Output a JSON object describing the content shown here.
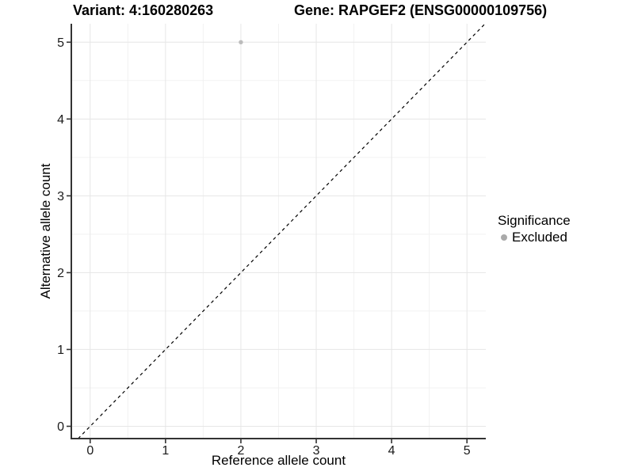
{
  "chart_data": {
    "type": "scatter",
    "titles": {
      "variant": "Variant: 4:160280263",
      "gene": "Gene: RAPGEF2 (ENSG00000109756)"
    },
    "xlabel": "Reference allele count",
    "ylabel": "Alternative allele count",
    "xlim": [
      -0.25,
      5.25
    ],
    "ylim": [
      -0.16,
      5.24
    ],
    "xticks": [
      0,
      1,
      2,
      3,
      4,
      5
    ],
    "yticks": [
      0,
      1,
      2,
      3,
      4,
      5
    ],
    "grid": "major+minor",
    "points": [
      {
        "x": 2,
        "y": 5,
        "significance": "Excluded"
      }
    ],
    "reference_line": {
      "type": "identity",
      "style": "dashed"
    },
    "legend": {
      "title": "Significance",
      "position": "right",
      "items": [
        {
          "label": "Excluded",
          "color": "#b0b0b0"
        }
      ]
    }
  },
  "colors": {
    "point": "#bcbcbc",
    "legend_dot": "#aaaaaa",
    "grid_major": "#e6e6e6",
    "grid_minor": "#f2f2f2",
    "axis_line": "#333333",
    "tick_mark": "#333333",
    "reference_line": "#000000",
    "tick_text": "#1a1a1a",
    "text": "#000000"
  }
}
